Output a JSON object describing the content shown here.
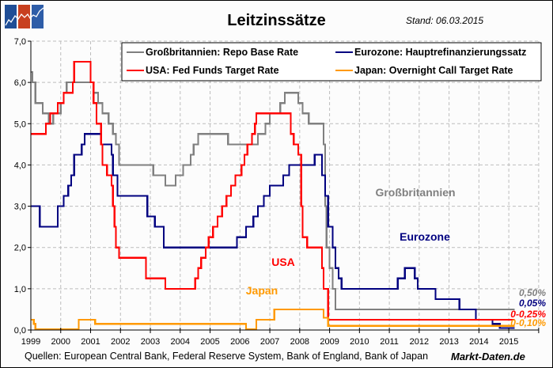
{
  "header": {
    "title": "Leitzinssätze",
    "stand": "Stand: 06.03.2015",
    "logo_icon": "market-chart-logo-icon"
  },
  "footer": {
    "source": "Quellen: European Central Bank, Federal Reserve System, Bank of England, Bank of Japan",
    "brand": "Markt-Daten.de"
  },
  "colors": {
    "uk": "#808080",
    "eurozone": "#000080",
    "usa": "#ff0000",
    "japan": "#ff9900"
  },
  "chart_data": {
    "type": "line",
    "step": true,
    "title": "Leitzinssätze",
    "xlabel": "",
    "ylabel": "",
    "xlim": [
      1999,
      2016
    ],
    "ylim": [
      0,
      7
    ],
    "grid": true,
    "legend_position": "top",
    "x_ticks": [
      "1999",
      "2000",
      "2001",
      "2002",
      "2003",
      "2004",
      "2005",
      "2006",
      "2007",
      "2008",
      "2009",
      "2010",
      "2011",
      "2012",
      "2013",
      "2014",
      "2015"
    ],
    "y_ticks": [
      "0,0",
      "1,0",
      "2,0",
      "3,0",
      "4,0",
      "5,0",
      "6,0",
      "7,0"
    ],
    "series": [
      {
        "key": "uk",
        "name": "Großbritannien: Repo Base Rate",
        "inline_label": "Großbritannien",
        "end_label": "0,50%",
        "color": "#808080",
        "points": [
          [
            1999.0,
            6.25
          ],
          [
            1999.05,
            6.0
          ],
          [
            1999.15,
            5.5
          ],
          [
            1999.4,
            5.25
          ],
          [
            1999.6,
            5.0
          ],
          [
            1999.75,
            5.25
          ],
          [
            2000.0,
            5.5
          ],
          [
            2000.1,
            5.75
          ],
          [
            2000.2,
            6.0
          ],
          [
            2001.1,
            5.75
          ],
          [
            2001.25,
            5.5
          ],
          [
            2001.4,
            5.25
          ],
          [
            2001.6,
            5.0
          ],
          [
            2001.75,
            4.75
          ],
          [
            2001.85,
            4.5
          ],
          [
            2001.95,
            4.0
          ],
          [
            2003.1,
            3.75
          ],
          [
            2003.5,
            3.5
          ],
          [
            2003.85,
            3.75
          ],
          [
            2004.1,
            4.0
          ],
          [
            2004.35,
            4.25
          ],
          [
            2004.45,
            4.5
          ],
          [
            2004.6,
            4.75
          ],
          [
            2005.6,
            4.5
          ],
          [
            2006.6,
            4.75
          ],
          [
            2006.85,
            5.0
          ],
          [
            2007.0,
            5.25
          ],
          [
            2007.35,
            5.5
          ],
          [
            2007.5,
            5.75
          ],
          [
            2007.95,
            5.5
          ],
          [
            2008.1,
            5.25
          ],
          [
            2008.3,
            5.0
          ],
          [
            2008.8,
            4.5
          ],
          [
            2008.85,
            3.0
          ],
          [
            2008.9,
            2.0
          ],
          [
            2009.0,
            1.5
          ],
          [
            2009.1,
            1.0
          ],
          [
            2009.2,
            0.5
          ],
          [
            2015.2,
            0.5
          ]
        ]
      },
      {
        "key": "eurozone",
        "name": "Eurozone: Hauptrefinanzierungssatz",
        "inline_label": "Eurozone",
        "end_label": "0,05%",
        "color": "#000080",
        "points": [
          [
            1999.0,
            3.0
          ],
          [
            1999.3,
            2.5
          ],
          [
            1999.9,
            3.0
          ],
          [
            2000.1,
            3.25
          ],
          [
            2000.25,
            3.5
          ],
          [
            2000.35,
            3.75
          ],
          [
            2000.45,
            4.25
          ],
          [
            2000.7,
            4.5
          ],
          [
            2000.8,
            4.75
          ],
          [
            2001.35,
            4.5
          ],
          [
            2001.7,
            4.25
          ],
          [
            2001.75,
            3.75
          ],
          [
            2001.9,
            3.25
          ],
          [
            2002.9,
            2.75
          ],
          [
            2003.15,
            2.5
          ],
          [
            2003.45,
            2.0
          ],
          [
            2005.9,
            2.25
          ],
          [
            2006.2,
            2.5
          ],
          [
            2006.45,
            2.75
          ],
          [
            2006.6,
            3.0
          ],
          [
            2006.8,
            3.25
          ],
          [
            2007.0,
            3.5
          ],
          [
            2007.45,
            3.75
          ],
          [
            2007.65,
            4.0
          ],
          [
            2008.5,
            4.25
          ],
          [
            2008.75,
            3.75
          ],
          [
            2008.85,
            3.25
          ],
          [
            2008.95,
            2.5
          ],
          [
            2009.1,
            2.0
          ],
          [
            2009.2,
            1.5
          ],
          [
            2009.3,
            1.25
          ],
          [
            2009.4,
            1.0
          ],
          [
            2011.28,
            1.25
          ],
          [
            2011.52,
            1.5
          ],
          [
            2011.85,
            1.25
          ],
          [
            2011.95,
            1.0
          ],
          [
            2012.55,
            0.75
          ],
          [
            2013.35,
            0.5
          ],
          [
            2013.9,
            0.25
          ],
          [
            2014.45,
            0.15
          ],
          [
            2014.7,
            0.05
          ],
          [
            2015.2,
            0.05
          ]
        ]
      },
      {
        "key": "usa",
        "name": "USA: Fed Funds Target Rate",
        "inline_label": "USA",
        "end_label": "0-0,25%",
        "color": "#ff0000",
        "points": [
          [
            1999.0,
            4.75
          ],
          [
            1999.5,
            5.0
          ],
          [
            1999.65,
            5.25
          ],
          [
            1999.9,
            5.5
          ],
          [
            2000.1,
            5.75
          ],
          [
            2000.4,
            6.0
          ],
          [
            2000.45,
            6.5
          ],
          [
            2001.0,
            6.0
          ],
          [
            2001.1,
            5.5
          ],
          [
            2001.2,
            5.0
          ],
          [
            2001.35,
            4.5
          ],
          [
            2001.4,
            4.0
          ],
          [
            2001.55,
            3.75
          ],
          [
            2001.7,
            3.5
          ],
          [
            2001.75,
            3.0
          ],
          [
            2001.8,
            2.5
          ],
          [
            2001.85,
            2.0
          ],
          [
            2001.95,
            1.75
          ],
          [
            2002.85,
            1.25
          ],
          [
            2003.5,
            1.0
          ],
          [
            2004.5,
            1.25
          ],
          [
            2004.6,
            1.5
          ],
          [
            2004.7,
            1.75
          ],
          [
            2004.85,
            2.0
          ],
          [
            2004.95,
            2.25
          ],
          [
            2005.1,
            2.5
          ],
          [
            2005.25,
            2.75
          ],
          [
            2005.4,
            3.0
          ],
          [
            2005.55,
            3.25
          ],
          [
            2005.7,
            3.5
          ],
          [
            2005.85,
            3.75
          ],
          [
            2006.05,
            4.0
          ],
          [
            2006.15,
            4.25
          ],
          [
            2006.25,
            4.5
          ],
          [
            2006.4,
            4.75
          ],
          [
            2006.5,
            5.0
          ],
          [
            2006.55,
            5.25
          ],
          [
            2007.7,
            4.75
          ],
          [
            2007.8,
            4.5
          ],
          [
            2007.95,
            4.25
          ],
          [
            2008.05,
            3.0
          ],
          [
            2008.1,
            2.25
          ],
          [
            2008.25,
            2.0
          ],
          [
            2008.75,
            1.5
          ],
          [
            2008.8,
            1.0
          ],
          [
            2008.95,
            0.25
          ],
          [
            2015.2,
            0.25
          ]
        ]
      },
      {
        "key": "japan",
        "name": "Japan: Overnight Call Target Rate",
        "inline_label": "Japan",
        "end_label": "0-0,10%",
        "color": "#ff9900",
        "points": [
          [
            1999.0,
            0.25
          ],
          [
            1999.1,
            0.15
          ],
          [
            1999.15,
            0.02
          ],
          [
            2000.6,
            0.25
          ],
          [
            2001.15,
            0.15
          ],
          [
            2006.2,
            0.02
          ],
          [
            2006.55,
            0.25
          ],
          [
            2007.15,
            0.5
          ],
          [
            2008.8,
            0.3
          ],
          [
            2008.95,
            0.1
          ],
          [
            2015.2,
            0.1
          ]
        ]
      }
    ]
  }
}
